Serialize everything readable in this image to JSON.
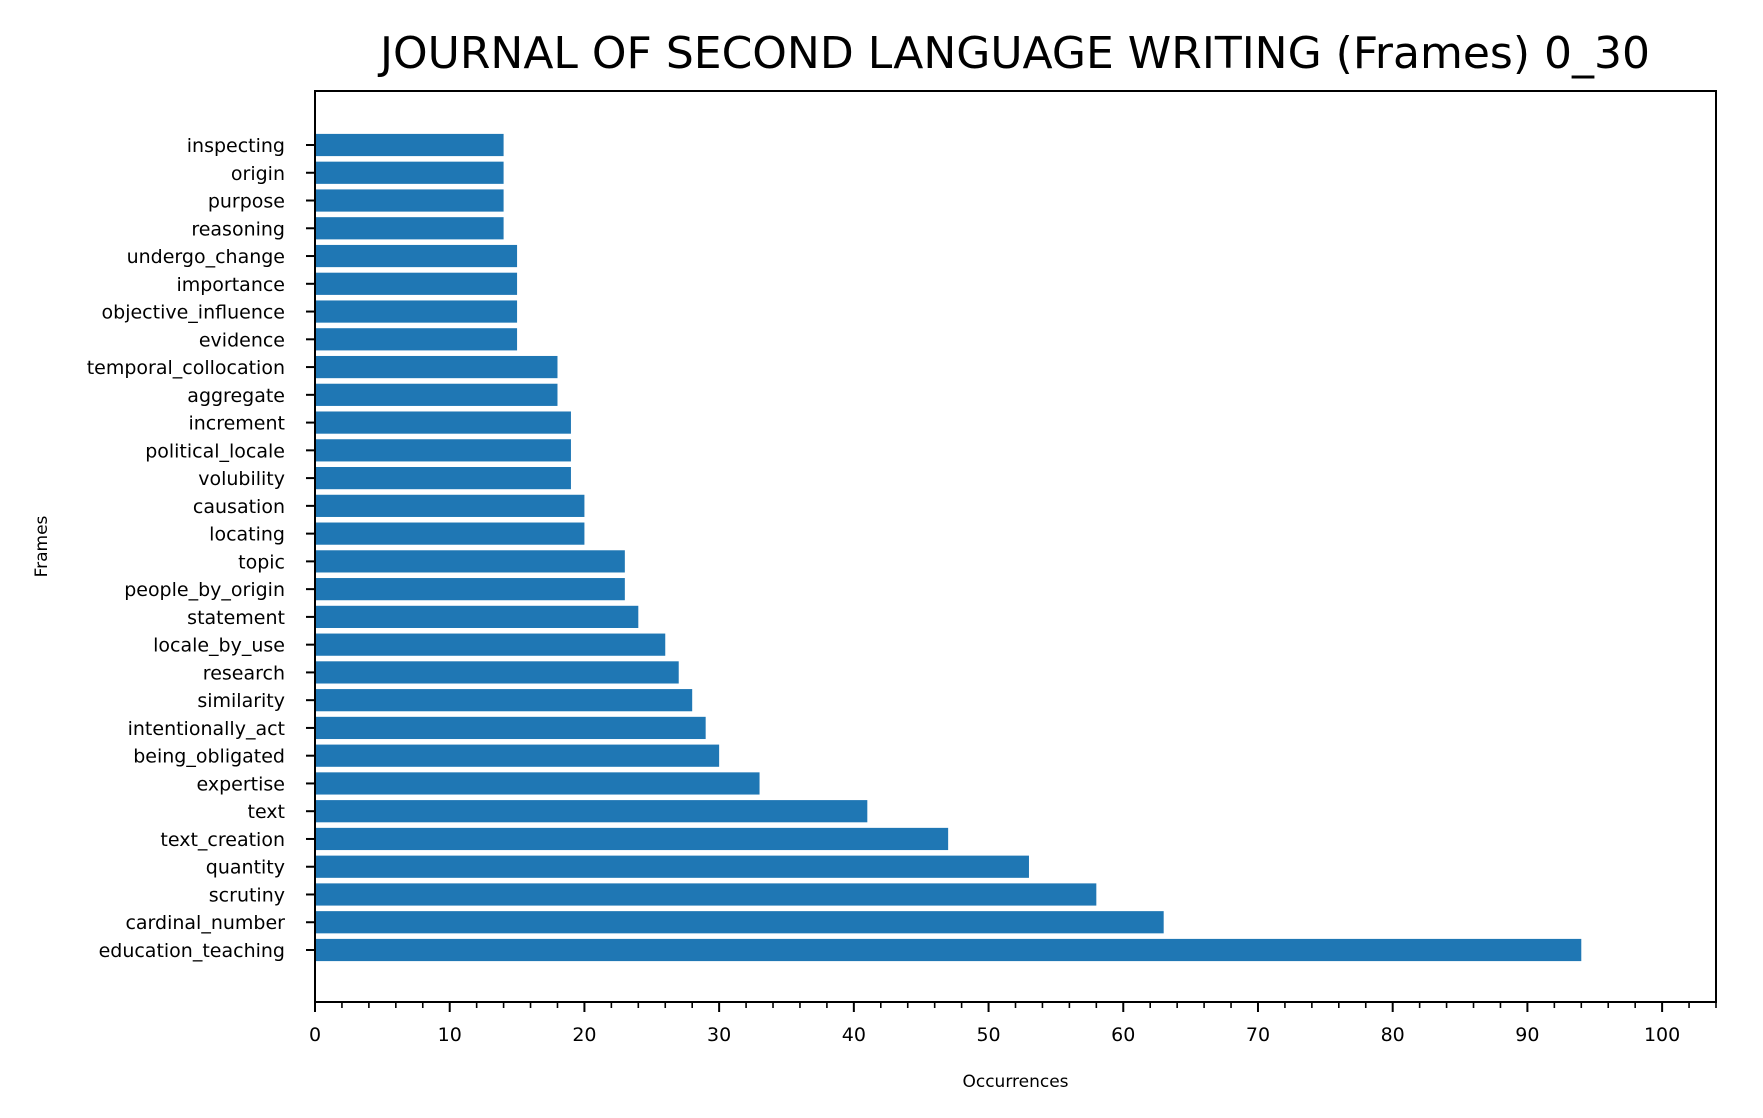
{
  "chart_data": {
    "type": "bar",
    "orientation": "horizontal",
    "title": "JOURNAL OF SECOND LANGUAGE WRITING (Frames) 0_30",
    "xlabel": "Occurrences",
    "ylabel": "Frames",
    "xlim": [
      0,
      104
    ],
    "x_ticks": [
      0,
      10,
      20,
      30,
      40,
      50,
      60,
      70,
      80,
      90,
      100
    ],
    "x_tick_labels": [
      "0",
      "10",
      "20",
      "30",
      "40",
      "50",
      "60",
      "70",
      "80",
      "90",
      "100"
    ],
    "grid": false,
    "legend": "none",
    "bar_color": "#1f77b4",
    "categories": [
      "education_teaching",
      "cardinal_number",
      "scrutiny",
      "quantity",
      "text_creation",
      "text",
      "expertise",
      "being_obligated",
      "intentionally_act",
      "similarity",
      "research",
      "locale_by_use",
      "statement",
      "people_by_origin",
      "topic",
      "locating",
      "causation",
      "volubility",
      "political_locale",
      "increment",
      "aggregate",
      "temporal_collocation",
      "evidence",
      "objective_influence",
      "importance",
      "undergo_change",
      "reasoning",
      "purpose",
      "origin",
      "inspecting"
    ],
    "values": [
      94,
      63,
      58,
      53,
      47,
      41,
      33,
      30,
      29,
      28,
      27,
      26,
      24,
      23,
      23,
      20,
      20,
      19,
      19,
      19,
      18,
      18,
      15,
      15,
      15,
      15,
      14,
      14,
      14,
      14
    ]
  }
}
